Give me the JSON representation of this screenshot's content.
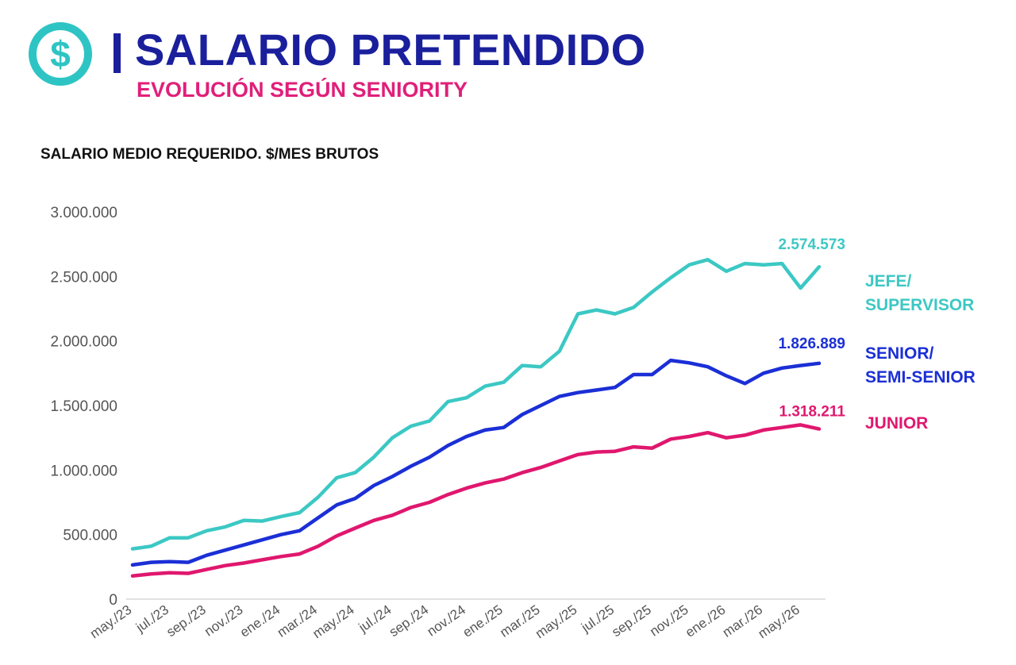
{
  "header": {
    "title": "SALARIO PRETENDIDO",
    "subtitle": "EVOLUCIÓN SEGÚN SENIORITY",
    "logo_icon": "dollar-circle-icon"
  },
  "colors": {
    "title": "#1a1f9c",
    "subtitle": "#e01f7a",
    "logo": "#2ec4c4",
    "jefe": "#3cc8c4",
    "senior": "#1b2fd6",
    "junior": "#e0176e"
  },
  "chart_data": {
    "type": "line",
    "title": "SALARIO MEDIO REQUERIDO. $/MES BRUTOS",
    "xlabel": "",
    "ylabel": "",
    "ylim": [
      0,
      3000000
    ],
    "yticks": [
      0,
      500000,
      1000000,
      1500000,
      2000000,
      2500000,
      3000000
    ],
    "ytick_labels": [
      "0",
      "500.000",
      "1.000.000",
      "1.500.000",
      "2.000.000",
      "2.500.000",
      "3.000.000"
    ],
    "grid": false,
    "legend_position": "right",
    "x": [
      "may./23",
      "jun./23",
      "jul./23",
      "ago./23",
      "sep./23",
      "oct./23",
      "nov./23",
      "dic./23",
      "ene./24",
      "feb./24",
      "mar./24",
      "abr./24",
      "may./24",
      "jun./24",
      "jul./24",
      "ago./24",
      "sep./24",
      "oct./24",
      "nov./24",
      "dic./24",
      "ene./25",
      "feb./25",
      "mar./25",
      "abr./25",
      "may./25",
      "jun./25",
      "jul./25",
      "ago./25",
      "sep./25",
      "oct./25",
      "nov./25",
      "dic./25",
      "ene./26",
      "feb./26",
      "mar./26",
      "abr./26",
      "may./26",
      "jun./26"
    ],
    "tick_labels": [
      "may./23",
      "jul./23",
      "sep./23",
      "nov./23",
      "ene./24",
      "mar./24",
      "may./24",
      "jul./24",
      "sep./24",
      "nov./24",
      "ene./25",
      "mar./25",
      "may./25",
      "jul./25",
      "sep./25",
      "nov./25",
      "ene./26",
      "mar./26",
      "may./26"
    ],
    "series": [
      {
        "name": "JEFE/ SUPERVISOR",
        "legend_lines": [
          "JEFE/",
          "SUPERVISOR"
        ],
        "end_label": "2.574.573",
        "values": [
          390000,
          410000,
          475000,
          475000,
          530000,
          560000,
          610000,
          605000,
          640000,
          670000,
          790000,
          940000,
          980000,
          1100000,
          1250000,
          1340000,
          1380000,
          1530000,
          1560000,
          1650000,
          1680000,
          1810000,
          1800000,
          1920000,
          2210000,
          2240000,
          2210000,
          2260000,
          2380000,
          2490000,
          2590000,
          2630000,
          2540000,
          2600000,
          2590000,
          2600000,
          2410000,
          2574573
        ]
      },
      {
        "name": "SENIOR/ SEMI-SENIOR",
        "legend_lines": [
          "SENIOR/",
          "SEMI-SENIOR"
        ],
        "end_label": "1.826.889",
        "values": [
          265000,
          285000,
          290000,
          285000,
          340000,
          380000,
          420000,
          460000,
          500000,
          530000,
          630000,
          730000,
          780000,
          880000,
          950000,
          1030000,
          1100000,
          1190000,
          1260000,
          1310000,
          1330000,
          1430000,
          1500000,
          1570000,
          1600000,
          1620000,
          1640000,
          1740000,
          1740000,
          1850000,
          1830000,
          1800000,
          1730000,
          1670000,
          1750000,
          1790000,
          1810000,
          1826889
        ]
      },
      {
        "name": "JUNIOR",
        "legend_lines": [
          "JUNIOR"
        ],
        "end_label": "1.318.211",
        "values": [
          180000,
          195000,
          205000,
          200000,
          230000,
          260000,
          280000,
          305000,
          330000,
          350000,
          410000,
          490000,
          550000,
          610000,
          650000,
          710000,
          750000,
          810000,
          860000,
          900000,
          930000,
          980000,
          1020000,
          1070000,
          1120000,
          1140000,
          1145000,
          1180000,
          1170000,
          1240000,
          1260000,
          1290000,
          1250000,
          1270000,
          1310000,
          1330000,
          1350000,
          1318211
        ]
      }
    ]
  }
}
